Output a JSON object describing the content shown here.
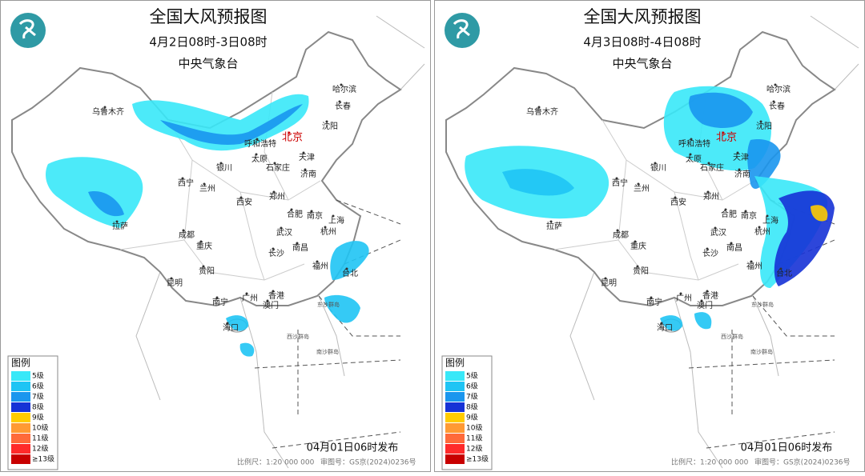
{
  "maps": [
    {
      "title": "全国大风预报图",
      "period": "4月2日08时-3日08时",
      "issuer": "中央气象台",
      "publish_time": "04月01日06时发布",
      "scale": "比例尺：1:20 000 000",
      "review_number": "审图号：GS京(2024)0236号"
    },
    {
      "title": "全国大风预报图",
      "period": "4月3日08时-4日08时",
      "issuer": "中央气象台",
      "publish_time": "04月01日06时发布",
      "scale": "比例尺：1:20 000 000",
      "review_number": "审图号：GS京(2024)0236号"
    }
  ],
  "legend": {
    "title": "图例",
    "levels": [
      {
        "label": "5级",
        "color": "#38e8f8"
      },
      {
        "label": "6级",
        "color": "#1fc4f4"
      },
      {
        "label": "7级",
        "color": "#1a96ee"
      },
      {
        "label": "8级",
        "color": "#1632d6"
      },
      {
        "label": "9级",
        "color": "#ffcc00"
      },
      {
        "label": "10级",
        "color": "#ff9a33"
      },
      {
        "label": "11级",
        "color": "#ff6a3a"
      },
      {
        "label": "12级",
        "color": "#ff2a2a"
      },
      {
        "label": "≥13级",
        "color": "#c80000"
      }
    ]
  },
  "cities": [
    "乌鲁木齐",
    "哈尔滨",
    "长春",
    "沈阳",
    "北京",
    "呼和浩特",
    "天津",
    "太原",
    "石家庄",
    "银川",
    "济南",
    "西宁",
    "兰州",
    "郑州",
    "西安",
    "合肥",
    "南京",
    "上海",
    "拉萨",
    "成都",
    "武汉",
    "杭州",
    "重庆",
    "长沙",
    "南昌",
    "福州",
    "贵阳",
    "台北",
    "昆明",
    "南宁",
    "广州",
    "香港",
    "澳门",
    "海口"
  ],
  "islands": [
    "东沙群岛",
    "西沙群岛",
    "南沙群岛"
  ]
}
